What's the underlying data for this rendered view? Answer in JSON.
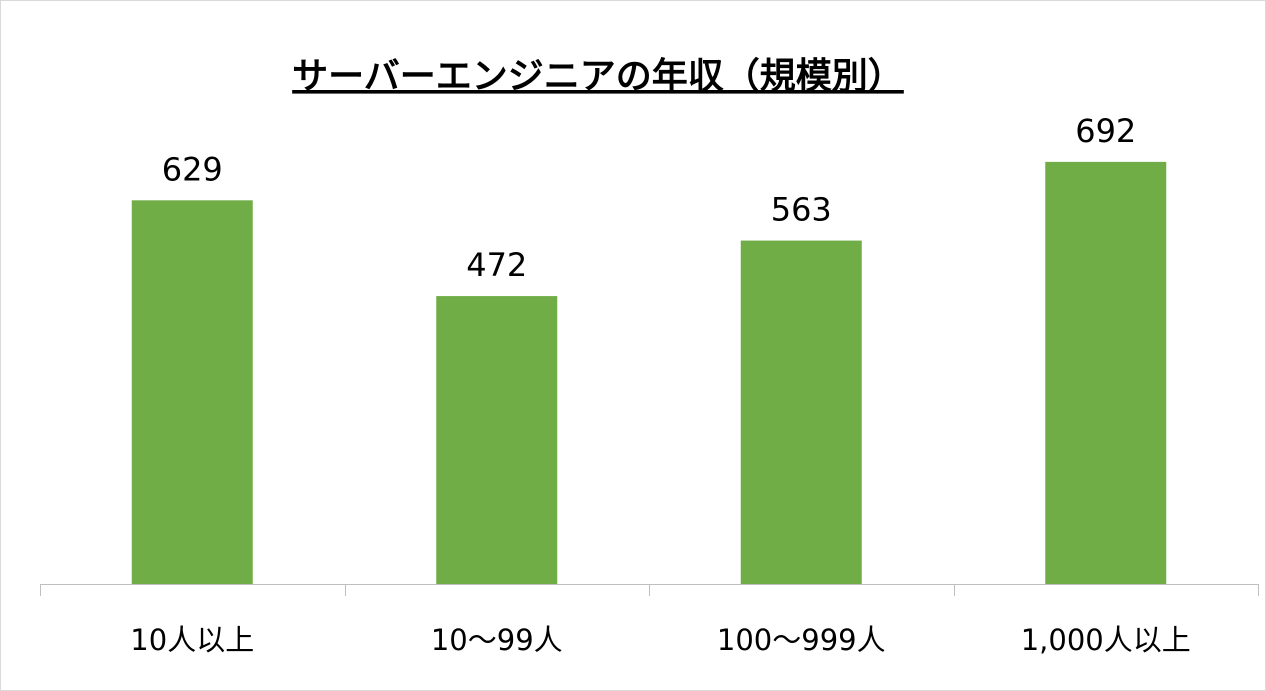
{
  "chart_data": {
    "type": "bar",
    "title": "サーバーエンジニアの年収（規模別）",
    "categories": [
      "10人以上",
      "10〜99人",
      "100〜999人",
      "1,000人以上"
    ],
    "values": [
      629,
      472,
      563,
      692
    ],
    "color": "#70ad47"
  }
}
